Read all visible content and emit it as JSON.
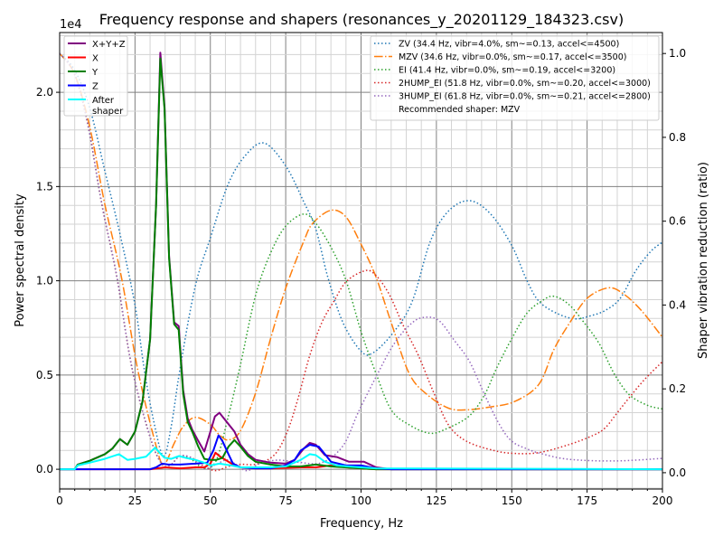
{
  "chart_data": {
    "type": "line",
    "title": "Frequency response and shapers (resonances_y_20201129_184323.csv)",
    "xlabel": "Frequency, Hz",
    "ylabel": "Power spectral density",
    "ylabel_right": "Shaper vibration reduction (ratio)",
    "y_offset_label": "1e4",
    "xlim": [
      0,
      200
    ],
    "ylim": [
      -0.105,
      2.317
    ],
    "ylim_right": [
      -0.039,
      1.05
    ],
    "grid": "major and minor",
    "x_ticks": [
      0,
      25,
      50,
      75,
      100,
      125,
      150,
      175,
      200
    ],
    "x_tick_labels": [
      "0",
      "25",
      "50",
      "75",
      "100",
      "125",
      "150",
      "175",
      "200"
    ],
    "y_ticks": [
      0,
      0.5,
      1.0,
      1.5,
      2.0
    ],
    "y_tick_labels": [
      "0.0",
      "0.5",
      "1.0",
      "1.5",
      "2.0"
    ],
    "y_ticks_right": [
      0,
      0.2,
      0.4,
      0.6,
      0.8,
      1.0
    ],
    "y_tick_labels_right": [
      "0.0",
      "0.2",
      "0.4",
      "0.6",
      "0.8",
      "1.0"
    ],
    "psd_series": [
      {
        "name": "X+Y+Z",
        "color": "#800080",
        "x": [
          0,
          5,
          6,
          10,
          15,
          17.5,
          20,
          22.5,
          25,
          27.5,
          30,
          32,
          33.4,
          34.8,
          36.3,
          38,
          39.5,
          41,
          42.5,
          44,
          46,
          48,
          50,
          51.5,
          53,
          55,
          58,
          60,
          62.5,
          65,
          70,
          75,
          78,
          81,
          83,
          85,
          88,
          92,
          96,
          101,
          105,
          110,
          200
        ],
        "y": [
          0,
          0,
          0.025,
          0.045,
          0.08,
          0.11,
          0.16,
          0.13,
          0.2,
          0.36,
          0.69,
          1.4,
          2.21,
          1.92,
          1.13,
          0.78,
          0.76,
          0.42,
          0.27,
          0.21,
          0.15,
          0.094,
          0.2,
          0.28,
          0.3,
          0.26,
          0.2,
          0.13,
          0.08,
          0.05,
          0.035,
          0.03,
          0.05,
          0.11,
          0.14,
          0.13,
          0.075,
          0.065,
          0.04,
          0.04,
          0.01,
          0,
          0
        ]
      },
      {
        "name": "X",
        "color": "#ff0000",
        "x": [
          0,
          30,
          35,
          40,
          45,
          48,
          50,
          51.7,
          53,
          55,
          58,
          60,
          65,
          70,
          80,
          85,
          90,
          95,
          100,
          105,
          200
        ],
        "y": [
          0,
          0,
          0.01,
          0.005,
          0.01,
          0.01,
          0.03,
          0.088,
          0.07,
          0.05,
          0.02,
          0.01,
          0.005,
          0.005,
          0.01,
          0.01,
          0.02,
          0.01,
          0.005,
          0,
          0
        ]
      },
      {
        "name": "Y",
        "color": "#008000",
        "x": [
          0,
          5,
          6,
          10,
          15,
          17.5,
          20,
          22.5,
          25,
          27.5,
          30,
          32,
          33.4,
          34.8,
          36.3,
          38,
          39.5,
          41,
          42.5,
          44,
          46,
          48,
          50,
          52,
          54,
          56,
          58,
          60,
          62.5,
          65,
          70,
          75,
          80,
          85,
          90,
          95,
          100,
          105,
          110,
          200
        ],
        "y": [
          0,
          0,
          0.025,
          0.045,
          0.08,
          0.11,
          0.16,
          0.13,
          0.2,
          0.36,
          0.69,
          1.4,
          2.18,
          1.91,
          1.12,
          0.77,
          0.74,
          0.4,
          0.25,
          0.2,
          0.12,
          0.055,
          0.05,
          0.05,
          0.06,
          0.12,
          0.155,
          0.12,
          0.07,
          0.04,
          0.025,
          0.015,
          0.015,
          0.025,
          0.015,
          0.01,
          0.005,
          0,
          0,
          0
        ]
      },
      {
        "name": "Z",
        "color": "#0000ff",
        "x": [
          0,
          30,
          32,
          34,
          36,
          40,
          45,
          49,
          51,
          52.7,
          54,
          56,
          57.5,
          60,
          65,
          70,
          75,
          78,
          80,
          83,
          86,
          88,
          90,
          95,
          100,
          105,
          110,
          200
        ],
        "y": [
          0,
          0,
          0.01,
          0.03,
          0.025,
          0.025,
          0.03,
          0.035,
          0.1,
          0.18,
          0.15,
          0.08,
          0.03,
          0.01,
          0.005,
          0.005,
          0.02,
          0.05,
          0.1,
          0.13,
          0.12,
          0.08,
          0.04,
          0.02,
          0.02,
          0.005,
          0,
          0
        ]
      },
      {
        "name": "After\nshaper",
        "color": "#00ffff",
        "x": [
          0,
          5,
          6,
          10,
          15,
          19.7,
          22.5,
          25,
          28.7,
          31.7,
          33,
          34.7,
          37,
          39.6,
          42,
          45,
          48,
          50,
          53,
          57,
          60,
          65,
          70,
          75,
          80,
          83,
          85,
          88,
          92,
          96,
          100,
          105,
          200
        ],
        "y": [
          0,
          0,
          0.02,
          0.035,
          0.055,
          0.08,
          0.05,
          0.055,
          0.067,
          0.115,
          0.09,
          0.062,
          0.055,
          0.07,
          0.06,
          0.05,
          0.035,
          0.02,
          0.03,
          0.02,
          0.01,
          0.01,
          0.01,
          0.015,
          0.05,
          0.08,
          0.075,
          0.04,
          0.02,
          0.015,
          0.01,
          0.005,
          0
        ]
      }
    ],
    "shaper_series": [
      {
        "name": "ZV (34.4 Hz, vibr=4.0%, sm~=0.13, accel<=4500)",
        "color": "#1f77b4",
        "style": "dotted",
        "x": [
          0,
          5,
          10,
          15,
          20,
          25,
          28,
          31,
          34.4,
          37,
          40,
          45,
          50,
          56,
          62,
          68,
          75,
          81,
          85,
          89,
          94,
          100,
          104,
          111,
          117,
          123,
          129,
          136,
          143,
          150,
          155,
          159,
          165,
          171,
          176,
          181,
          186,
          191,
          196,
          200
        ],
        "y": [
          1.0,
          0.96,
          0.87,
          0.72,
          0.57,
          0.4,
          0.25,
          0.13,
          0.04,
          0.11,
          0.25,
          0.445,
          0.56,
          0.69,
          0.76,
          0.786,
          0.732,
          0.646,
          0.581,
          0.466,
          0.358,
          0.29,
          0.286,
          0.337,
          0.409,
          0.552,
          0.624,
          0.649,
          0.617,
          0.542,
          0.459,
          0.409,
          0.38,
          0.367,
          0.374,
          0.387,
          0.416,
          0.48,
          0.527,
          0.55
        ]
      },
      {
        "name": "MZV (34.6 Hz, vibr=0.0%, sm~=0.17, accel<=3500)",
        "color": "#ff7f0e",
        "style": "dashdot",
        "x": [
          0,
          5,
          10,
          15,
          20.5,
          25.8,
          32,
          34.6,
          38,
          41,
          45,
          50,
          53,
          56,
          60,
          65,
          70,
          75,
          81,
          84,
          90,
          95,
          100,
          105,
          110,
          116,
          122,
          129,
          135,
          143,
          151,
          159,
          164,
          169,
          175,
          182,
          187,
          193,
          200
        ],
        "y": [
          1.0,
          0.95,
          0.825,
          0.64,
          0.466,
          0.25,
          0.064,
          0.02,
          0.07,
          0.11,
          0.132,
          0.115,
          0.09,
          0.078,
          0.1,
          0.19,
          0.32,
          0.44,
          0.552,
          0.595,
          0.626,
          0.61,
          0.545,
          0.466,
          0.358,
          0.236,
          0.186,
          0.154,
          0.15,
          0.157,
          0.17,
          0.211,
          0.294,
          0.355,
          0.416,
          0.441,
          0.427,
          0.387,
          0.323
        ]
      },
      {
        "name": "EI (41.4 Hz, vibr=0.0%, sm~=0.19, accel<=3200)",
        "color": "#2ca02c",
        "style": "dotted",
        "x": [
          0,
          5,
          9.5,
          14,
          19,
          24,
          30,
          34,
          37,
          40,
          44,
          48,
          52,
          56,
          60,
          65,
          70,
          75,
          81,
          85,
          90,
          95,
          100,
          105,
          110,
          116,
          123,
          129,
          136,
          141,
          145,
          150,
          155,
          160,
          164,
          169,
          174,
          179,
          184,
          189,
          195,
          200
        ],
        "y": [
          1.0,
          0.95,
          0.825,
          0.64,
          0.466,
          0.25,
          0.085,
          0.02,
          0.02,
          0.04,
          0.03,
          0.01,
          0.03,
          0.136,
          0.258,
          0.423,
          0.524,
          0.588,
          0.617,
          0.595,
          0.538,
          0.459,
          0.337,
          0.236,
          0.15,
          0.114,
          0.094,
          0.107,
          0.136,
          0.186,
          0.25,
          0.32,
          0.38,
          0.41,
          0.421,
          0.401,
          0.358,
          0.308,
          0.236,
          0.186,
          0.161,
          0.152
        ]
      },
      {
        "name": "2HUMP_EI (51.8 Hz, vibr=0.0%, sm~=0.20, accel<=3000)",
        "color": "#d62728",
        "style": "dotted",
        "x": [
          0,
          5,
          9.5,
          14,
          19,
          24,
          30,
          34,
          37,
          40,
          44,
          48,
          51.8,
          56,
          60,
          65,
          70,
          73,
          76,
          79,
          83,
          87,
          91,
          95,
          100.5,
          104,
          109,
          114,
          119,
          124,
          129,
          135,
          144,
          151,
          159,
          169,
          177,
          181,
          185,
          189,
          194,
          200
        ],
        "y": [
          1.0,
          0.95,
          0.825,
          0.64,
          0.466,
          0.25,
          0.085,
          0.02,
          0.02,
          0.04,
          0.035,
          0.015,
          0.005,
          0.015,
          0.02,
          0.02,
          0.035,
          0.06,
          0.107,
          0.175,
          0.28,
          0.358,
          0.409,
          0.455,
          0.48,
          0.477,
          0.43,
          0.351,
          0.28,
          0.193,
          0.114,
          0.075,
          0.053,
          0.046,
          0.048,
          0.067,
          0.089,
          0.107,
          0.143,
          0.179,
          0.222,
          0.265
        ]
      },
      {
        "name": "3HUMP_EI (61.8 Hz, vibr=0.0%, sm~=0.21, accel<=2800)",
        "color": "#9467bd",
        "style": "dotted",
        "x": [
          0,
          5,
          9.5,
          14,
          19,
          24,
          30,
          34,
          37,
          40,
          44,
          48,
          52,
          56,
          61.8,
          66,
          72,
          79,
          87,
          94,
          99,
          105,
          111,
          117,
          121.5,
          126,
          131,
          136,
          141,
          146,
          150,
          155,
          160,
          169,
          184,
          200
        ],
        "y": [
          1.0,
          0.95,
          0.825,
          0.64,
          0.466,
          0.25,
          0.085,
          0.02,
          0.02,
          0.04,
          0.035,
          0.01,
          0.02,
          0.03,
          0.005,
          0.02,
          0.03,
          0.025,
          0.024,
          0.064,
          0.143,
          0.229,
          0.308,
          0.358,
          0.371,
          0.362,
          0.315,
          0.265,
          0.186,
          0.114,
          0.075,
          0.057,
          0.045,
          0.032,
          0.028,
          0.034
        ]
      }
    ],
    "legend_left_placement": "top-left",
    "legend_right_placement": "top-right",
    "recommendation": "Recommended shaper: MZV"
  }
}
